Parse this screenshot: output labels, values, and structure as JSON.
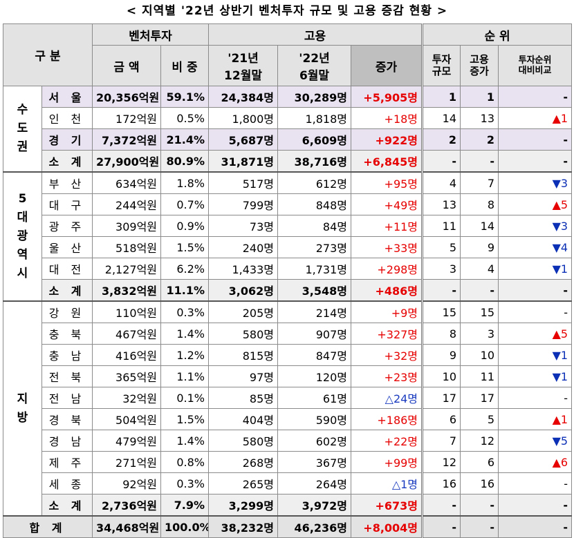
{
  "title": "< 지역별 '22년 상반기 벤처투자 규모 및 고용 증감 현황 >",
  "header": {
    "gubun": "구 분",
    "venture": "벤처투자",
    "amount": "금 액",
    "share": "비 중",
    "employment": "고용",
    "dec21_line1": "'21년",
    "dec21_line2": "12월말",
    "jun22_line1": "'22년",
    "jun22_line2": "6월말",
    "increase": "증가",
    "rank": "순 위",
    "rank_inv_1": "투자",
    "rank_inv_2": "규모",
    "rank_emp_1": "고용",
    "rank_emp_2": "증가",
    "rank_cmp_1": "투자순위",
    "rank_cmp_2": "대비비교"
  },
  "groups": {
    "capital": [
      "수",
      "도",
      "권"
    ],
    "metro": [
      "5",
      "대",
      "광",
      "역",
      "시"
    ],
    "local": [
      "지",
      "방"
    ]
  },
  "capital_rows": [
    {
      "name": "서 울",
      "amount": "20,356억원",
      "share": "59.1%",
      "dec21": "24,384명",
      "jun22": "30,289명",
      "inc": "+5,905명",
      "r_inv": "1",
      "r_emp": "1",
      "cmp": "-"
    },
    {
      "name": "인 천",
      "amount": "172억원",
      "share": "0.5%",
      "dec21": "1,800명",
      "jun22": "1,818명",
      "inc": "+18명",
      "r_inv": "14",
      "r_emp": "13",
      "cmp": "▲1"
    },
    {
      "name": "경 기",
      "amount": "7,372억원",
      "share": "21.4%",
      "dec21": "5,687명",
      "jun22": "6,609명",
      "inc": "+922명",
      "r_inv": "2",
      "r_emp": "2",
      "cmp": "-"
    },
    {
      "name": "소 계",
      "amount": "27,900억원",
      "share": "80.9%",
      "dec21": "31,871명",
      "jun22": "38,716명",
      "inc": "+6,845명",
      "r_inv": "-",
      "r_emp": "-",
      "cmp": "-"
    }
  ],
  "metro_rows": [
    {
      "name": "부 산",
      "amount": "634억원",
      "share": "1.8%",
      "dec21": "517명",
      "jun22": "612명",
      "inc": "+95명",
      "r_inv": "4",
      "r_emp": "7",
      "cmp": "▼3"
    },
    {
      "name": "대 구",
      "amount": "244억원",
      "share": "0.7%",
      "dec21": "799명",
      "jun22": "848명",
      "inc": "+49명",
      "r_inv": "13",
      "r_emp": "8",
      "cmp": "▲5"
    },
    {
      "name": "광 주",
      "amount": "309억원",
      "share": "0.9%",
      "dec21": "73명",
      "jun22": "84명",
      "inc": "+11명",
      "r_inv": "11",
      "r_emp": "14",
      "cmp": "▼3"
    },
    {
      "name": "울 산",
      "amount": "518억원",
      "share": "1.5%",
      "dec21": "240명",
      "jun22": "273명",
      "inc": "+33명",
      "r_inv": "5",
      "r_emp": "9",
      "cmp": "▼4"
    },
    {
      "name": "대 전",
      "amount": "2,127억원",
      "share": "6.2%",
      "dec21": "1,433명",
      "jun22": "1,731명",
      "inc": "+298명",
      "r_inv": "3",
      "r_emp": "4",
      "cmp": "▼1"
    },
    {
      "name": "소 계",
      "amount": "3,832억원",
      "share": "11.1%",
      "dec21": "3,062명",
      "jun22": "3,548명",
      "inc": "+486명",
      "r_inv": "-",
      "r_emp": "-",
      "cmp": "-"
    }
  ],
  "local_rows": [
    {
      "name": "강 원",
      "amount": "110억원",
      "share": "0.3%",
      "dec21": "205명",
      "jun22": "214명",
      "inc": "+9명",
      "r_inv": "15",
      "r_emp": "15",
      "cmp": "-"
    },
    {
      "name": "충 북",
      "amount": "467억원",
      "share": "1.4%",
      "dec21": "580명",
      "jun22": "907명",
      "inc": "+327명",
      "r_inv": "8",
      "r_emp": "3",
      "cmp": "▲5"
    },
    {
      "name": "충 남",
      "amount": "416억원",
      "share": "1.2%",
      "dec21": "815명",
      "jun22": "847명",
      "inc": "+32명",
      "r_inv": "9",
      "r_emp": "10",
      "cmp": "▼1"
    },
    {
      "name": "전 북",
      "amount": "365억원",
      "share": "1.1%",
      "dec21": "97명",
      "jun22": "120명",
      "inc": "+23명",
      "r_inv": "10",
      "r_emp": "11",
      "cmp": "▼1"
    },
    {
      "name": "전 남",
      "amount": "32억원",
      "share": "0.1%",
      "dec21": "85명",
      "jun22": "61명",
      "inc": "△24명",
      "r_inv": "17",
      "r_emp": "17",
      "cmp": "-"
    },
    {
      "name": "경 북",
      "amount": "504억원",
      "share": "1.5%",
      "dec21": "404명",
      "jun22": "590명",
      "inc": "+186명",
      "r_inv": "6",
      "r_emp": "5",
      "cmp": "▲1"
    },
    {
      "name": "경 남",
      "amount": "479억원",
      "share": "1.4%",
      "dec21": "580명",
      "jun22": "602명",
      "inc": "+22명",
      "r_inv": "7",
      "r_emp": "12",
      "cmp": "▼5"
    },
    {
      "name": "제 주",
      "amount": "271억원",
      "share": "0.8%",
      "dec21": "268명",
      "jun22": "367명",
      "inc": "+99명",
      "r_inv": "12",
      "r_emp": "6",
      "cmp": "▲6"
    },
    {
      "name": "세 종",
      "amount": "92억원",
      "share": "0.3%",
      "dec21": "265명",
      "jun22": "264명",
      "inc": "△1명",
      "r_inv": "16",
      "r_emp": "16",
      "cmp": "-"
    },
    {
      "name": "소 계",
      "amount": "2,736억원",
      "share": "7.9%",
      "dec21": "3,299명",
      "jun22": "3,972명",
      "inc": "+673명",
      "r_inv": "-",
      "r_emp": "-",
      "cmp": "-"
    }
  ],
  "total": {
    "name": "합 계",
    "amount": "34,468억원",
    "share": "100.0%",
    "dec21": "38,232명",
    "jun22": "46,236명",
    "inc": "+8,004명",
    "r_inv": "-",
    "r_emp": "-",
    "cmp": "-"
  },
  "colors": {
    "increase": "#e60000",
    "decrease": "#1a3bbf",
    "highlight_row": "#e9e2f1",
    "header_bg": "#e3e3e3"
  }
}
